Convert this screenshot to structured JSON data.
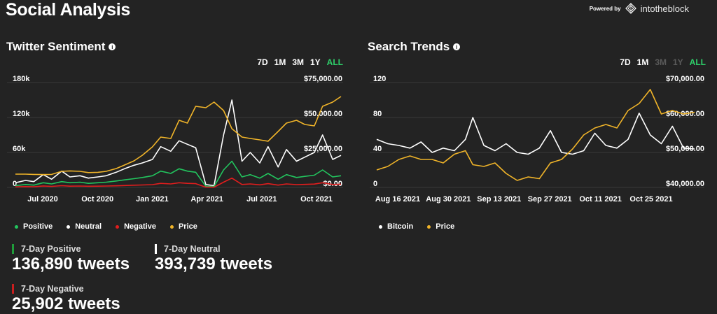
{
  "page": {
    "title": "Social Analysis"
  },
  "powered": {
    "by": "Powered by",
    "brand": "intotheblock"
  },
  "twitter": {
    "title": "Twitter Sentiment",
    "ranges": [
      {
        "label": "7D",
        "state": "normal"
      },
      {
        "label": "1M",
        "state": "normal"
      },
      {
        "label": "3M",
        "state": "normal"
      },
      {
        "label": "1Y",
        "state": "normal"
      },
      {
        "label": "ALL",
        "state": "active"
      }
    ],
    "legend": [
      {
        "label": "Positive",
        "color": "#22c55e"
      },
      {
        "label": "Neutral",
        "color": "#ffffff"
      },
      {
        "label": "Negative",
        "color": "#e11d1d"
      },
      {
        "label": "Price",
        "color": "#f0b429"
      }
    ],
    "stats": [
      {
        "label": "7-Day Positive",
        "value": "136,890 tweets",
        "color": "#1f9d3a"
      },
      {
        "label": "7-Day Neutral",
        "value": "393,739 tweets",
        "color": "#ffffff"
      },
      {
        "label": "7-Day Negative",
        "value": "25,902 tweets",
        "color": "#c81e1e"
      }
    ]
  },
  "search": {
    "title": "Search Trends",
    "ranges": [
      {
        "label": "7D",
        "state": "normal"
      },
      {
        "label": "1M",
        "state": "normal"
      },
      {
        "label": "3M",
        "state": "disabled"
      },
      {
        "label": "1Y",
        "state": "disabled"
      },
      {
        "label": "ALL",
        "state": "active"
      }
    ],
    "legend": [
      {
        "label": "Bitcoin",
        "color": "#ffffff"
      },
      {
        "label": "Price",
        "color": "#f0b429"
      }
    ]
  },
  "chart_data": [
    {
      "type": "line",
      "title": "Twitter Sentiment",
      "x_ticks": [
        "Jul 2020",
        "Oct 2020",
        "Jan 2021",
        "Apr 2021",
        "Jul 2021",
        "Oct 2021"
      ],
      "y_left_ticks": [
        "0",
        "60k",
        "120k",
        "180k"
      ],
      "y_right_ticks": [
        "$0.00",
        "$25,000.00",
        "$50,000.00",
        "$75,000.00"
      ],
      "ylim_left": [
        0,
        180000
      ],
      "ylim_right": [
        0,
        75000
      ],
      "x": [
        "2020-05-15",
        "2020-06-01",
        "2020-06-15",
        "2020-07-01",
        "2020-07-15",
        "2020-08-01",
        "2020-08-15",
        "2020-09-01",
        "2020-09-15",
        "2020-10-01",
        "2020-10-15",
        "2020-11-01",
        "2020-11-15",
        "2020-12-01",
        "2020-12-15",
        "2021-01-01",
        "2021-01-15",
        "2021-02-01",
        "2021-02-15",
        "2021-03-01",
        "2021-03-15",
        "2021-04-01",
        "2021-04-15",
        "2021-05-01",
        "2021-05-15",
        "2021-06-01",
        "2021-06-15",
        "2021-07-01",
        "2021-07-15",
        "2021-08-01",
        "2021-08-15",
        "2021-09-01",
        "2021-09-15",
        "2021-10-01",
        "2021-10-15",
        "2021-11-01",
        "2021-11-15"
      ],
      "series": [
        {
          "name": "Neutral",
          "color": "#ffffff",
          "axis": "left",
          "values": [
            8000,
            12000,
            10000,
            22000,
            14000,
            28000,
            18000,
            20000,
            16000,
            18000,
            20000,
            26000,
            32000,
            38000,
            42000,
            48000,
            70000,
            62000,
            80000,
            74000,
            68000,
            5000,
            3000,
            90000,
            150000,
            45000,
            60000,
            42000,
            70000,
            35000,
            65000,
            45000,
            52000,
            60000,
            90000,
            48000,
            55000
          ]
        },
        {
          "name": "Positive",
          "color": "#22c55e",
          "axis": "left",
          "values": [
            3000,
            5000,
            4000,
            8000,
            6000,
            10000,
            8000,
            9000,
            7000,
            8000,
            9000,
            11000,
            13000,
            15000,
            17000,
            20000,
            28000,
            24000,
            32000,
            28000,
            26000,
            2000,
            1500,
            30000,
            45000,
            18000,
            22000,
            16000,
            24000,
            14000,
            22000,
            17000,
            19000,
            21000,
            30000,
            18000,
            20000
          ]
        },
        {
          "name": "Negative",
          "color": "#e11d1d",
          "axis": "left",
          "values": [
            1000,
            1500,
            1200,
            2500,
            1800,
            3000,
            2200,
            2400,
            2000,
            2200,
            2400,
            2800,
            3200,
            3800,
            4200,
            4800,
            7000,
            6000,
            8000,
            7000,
            6500,
            500,
            400,
            9000,
            16000,
            5000,
            6000,
            4500,
            6500,
            4000,
            6000,
            4800,
            5200,
            5800,
            8000,
            5000,
            5500
          ]
        },
        {
          "name": "Price",
          "color": "#f0b429",
          "axis": "right",
          "values": [
            9500,
            9500,
            9300,
            9200,
            9300,
            11500,
            11800,
            11500,
            10600,
            10800,
            11500,
            13500,
            16000,
            19000,
            23000,
            29000,
            36000,
            35000,
            48000,
            46000,
            58000,
            57000,
            61000,
            55000,
            42000,
            36000,
            35000,
            34000,
            33000,
            40000,
            46000,
            48000,
            45000,
            44000,
            58000,
            61000,
            65000
          ]
        }
      ]
    },
    {
      "type": "line",
      "title": "Search Trends",
      "x_ticks": [
        "Aug 16 2021",
        "Aug 30 2021",
        "Sep 13 2021",
        "Sep 27 2021",
        "Oct 11 2021",
        "Oct 25 2021"
      ],
      "y_left_ticks": [
        "0",
        "40",
        "80",
        "120"
      ],
      "y_right_ticks": [
        "$40,000.00",
        "$50,000.00",
        "$60,000.00",
        "$70,000.00"
      ],
      "ylim_left": [
        0,
        120
      ],
      "ylim_right": [
        40000,
        70000
      ],
      "x": [
        "2021-08-13",
        "2021-08-16",
        "2021-08-19",
        "2021-08-22",
        "2021-08-25",
        "2021-08-28",
        "2021-08-31",
        "2021-09-03",
        "2021-09-06",
        "2021-09-08",
        "2021-09-11",
        "2021-09-14",
        "2021-09-17",
        "2021-09-20",
        "2021-09-23",
        "2021-09-26",
        "2021-09-29",
        "2021-10-02",
        "2021-10-05",
        "2021-10-08",
        "2021-10-11",
        "2021-10-14",
        "2021-10-17",
        "2021-10-20",
        "2021-10-23",
        "2021-10-26",
        "2021-10-29",
        "2021-11-01",
        "2021-11-04",
        "2021-11-07"
      ],
      "series": [
        {
          "name": "Bitcoin",
          "color": "#ffffff",
          "axis": "left",
          "values": [
            55,
            50,
            48,
            45,
            52,
            40,
            45,
            42,
            55,
            80,
            48,
            42,
            50,
            40,
            38,
            45,
            65,
            40,
            38,
            42,
            62,
            48,
            45,
            55,
            85,
            60,
            50,
            70,
            45,
            44
          ]
        },
        {
          "name": "Price",
          "color": "#f0b429",
          "axis": "right",
          "values": [
            45000,
            46000,
            48000,
            49000,
            48000,
            48000,
            47000,
            49500,
            50500,
            46500,
            46000,
            47000,
            44000,
            42000,
            43000,
            42500,
            47000,
            48000,
            51000,
            55000,
            57000,
            58000,
            57000,
            62000,
            64000,
            68000,
            61000,
            62000,
            61000,
            61500
          ]
        }
      ]
    }
  ]
}
